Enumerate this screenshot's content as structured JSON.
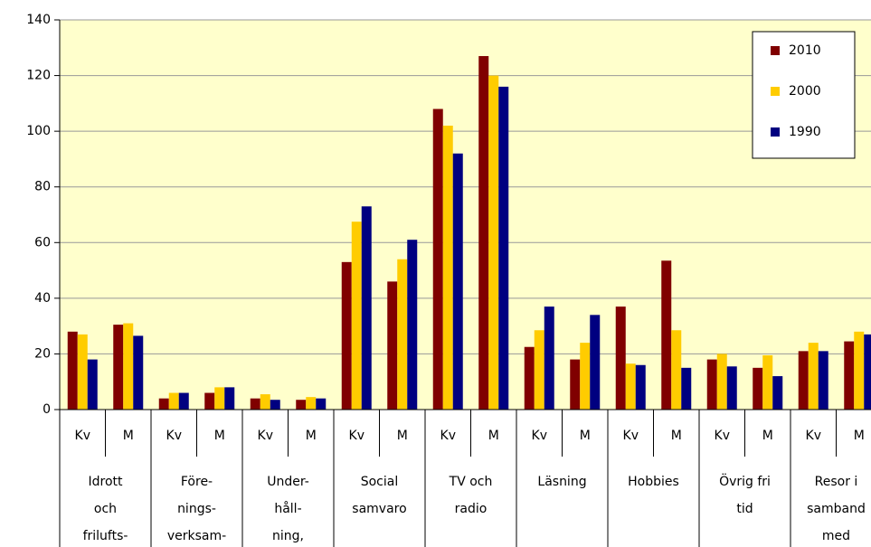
{
  "chart_data": {
    "type": "bar",
    "categories": [
      "Kv",
      "M",
      "Kv",
      "M",
      "Kv",
      "M",
      "Kv",
      "M",
      "Kv",
      "M",
      "Kv",
      "M",
      "Kv",
      "M",
      "Kv",
      "M",
      "Kv",
      "M"
    ],
    "groups": [
      [
        "Idrott",
        "och",
        "frilufts-"
      ],
      [
        "Före-",
        "nings-",
        "verksam-"
      ],
      [
        "Under-",
        "håll-",
        "ning,"
      ],
      [
        "Social",
        "samvaro"
      ],
      [
        "TV och",
        "radio"
      ],
      [
        "Läsning"
      ],
      [
        "Hobbies"
      ],
      [
        "Övrig fri",
        "tid"
      ],
      [
        "Resor i",
        "samband",
        "med"
      ]
    ],
    "series": [
      {
        "name": "2010",
        "color": "#800000",
        "values": [
          28,
          30.5,
          4,
          6,
          4,
          3.5,
          53,
          46,
          108,
          127,
          22.5,
          18,
          37,
          53.5,
          18,
          15,
          21,
          24.5
        ]
      },
      {
        "name": "2000",
        "color": "#ffcc00",
        "values": [
          27,
          31,
          6,
          8,
          5.5,
          4.5,
          67.5,
          54,
          102,
          120,
          28.5,
          24,
          16.5,
          28.5,
          20,
          19.5,
          24,
          28
        ]
      },
      {
        "name": "1990",
        "color": "#000080",
        "values": [
          18,
          26.5,
          6,
          8,
          3.5,
          4,
          73,
          61,
          92,
          116,
          37,
          34,
          16,
          15,
          15.5,
          12,
          21,
          27
        ]
      }
    ],
    "ylim": [
      0,
      140
    ],
    "yticks": [
      0,
      20,
      40,
      60,
      80,
      100,
      120,
      140
    ],
    "grid": true,
    "legend": "top-right",
    "plot_background": "#ffffcc"
  }
}
